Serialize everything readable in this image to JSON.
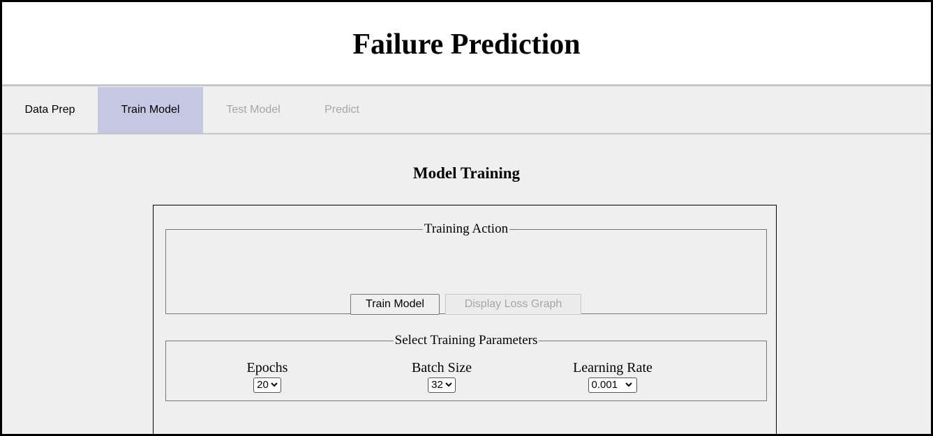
{
  "header": {
    "title": "Failure Prediction"
  },
  "tabs": [
    {
      "label": "Data Prep",
      "state": "enabled"
    },
    {
      "label": "Train Model",
      "state": "active"
    },
    {
      "label": "Test Model",
      "state": "disabled"
    },
    {
      "label": "Predict",
      "state": "disabled"
    }
  ],
  "main": {
    "title": "Model Training",
    "training_action": {
      "legend": "Training Action",
      "train_button": "Train Model",
      "loss_graph_button": "Display Loss Graph"
    },
    "parameters": {
      "legend": "Select Training Parameters",
      "epochs": {
        "label": "Epochs",
        "value": "20"
      },
      "batch_size": {
        "label": "Batch Size",
        "value": "32"
      },
      "learning_rate": {
        "label": "Learning Rate",
        "value": "0.001"
      }
    }
  },
  "colors": {
    "active_tab": "#c6c7e3",
    "disabled_text": "#a6a6a6",
    "background": "#efefef"
  },
  "icons": {
    "select_arrow": "chevron-down-icon"
  }
}
